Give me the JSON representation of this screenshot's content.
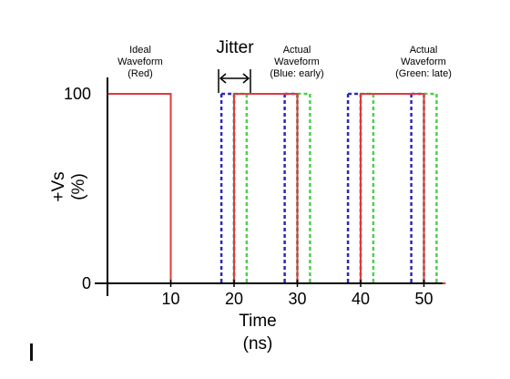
{
  "chart_data": {
    "type": "line",
    "xlabel": "Time",
    "xunit": "(ns)",
    "ylabel": "+Vs",
    "yunit": "(%)",
    "xlim": [
      0,
      52
    ],
    "ylim": [
      0,
      100
    ],
    "xticks": [
      10,
      20,
      30,
      40,
      50
    ],
    "yticks": [
      0,
      100
    ],
    "grid": false,
    "annotations": {
      "ideal": [
        "Ideal",
        "Waveform",
        "(Red)"
      ],
      "early": [
        "Actual",
        "Waveform",
        "(Blue: early)"
      ],
      "late": [
        "Actual",
        "Waveform",
        "(Green: late)"
      ],
      "jitter": "Jitter"
    },
    "series": [
      {
        "name": "Ideal Waveform (Red)",
        "color": "#e0393e",
        "style": "solid",
        "pulses": [
          [
            0,
            10
          ],
          [
            20,
            30
          ],
          [
            40,
            50
          ]
        ]
      },
      {
        "name": "Actual Waveform (Blue: early)",
        "color": "#2a2ab8",
        "style": "dashed",
        "pulses": [
          [
            18,
            20
          ],
          [
            28,
            30
          ],
          [
            38,
            40
          ],
          [
            48,
            50
          ]
        ]
      },
      {
        "name": "Actual Waveform (Green: late)",
        "color": "#4cd04c",
        "style": "dashed",
        "pulses": [
          [
            20,
            22
          ],
          [
            30,
            32
          ],
          [
            40,
            42
          ],
          [
            50,
            52
          ]
        ]
      }
    ]
  }
}
